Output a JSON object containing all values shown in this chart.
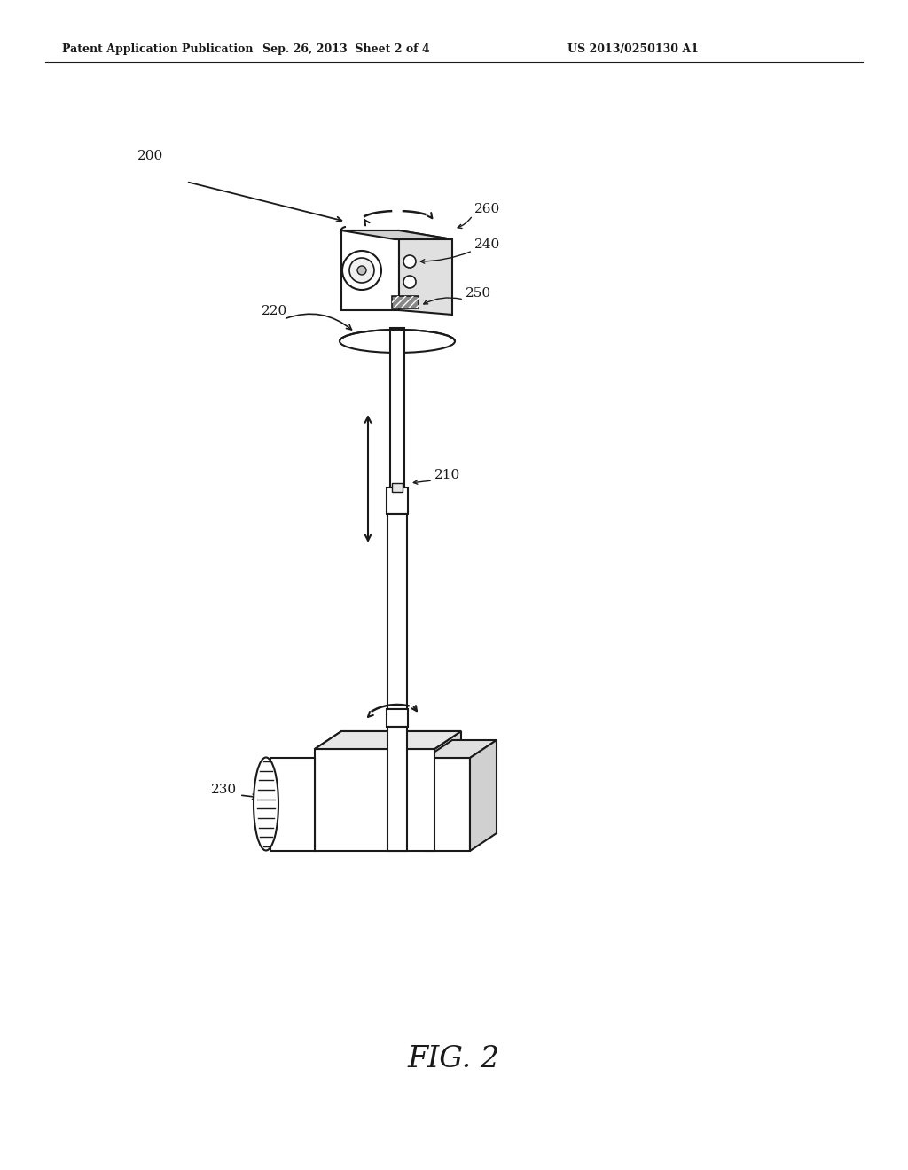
{
  "title": "FIG. 2",
  "header_left": "Patent Application Publication",
  "header_center": "Sep. 26, 2013  Sheet 2 of 4",
  "header_right": "US 2013/0250130 A1",
  "label_200": "200",
  "label_210": "210",
  "label_220": "220",
  "label_230": "230",
  "label_240": "240",
  "label_250": "250",
  "label_260": "260",
  "bg_color": "#ffffff",
  "line_color": "#1a1a1a",
  "text_color": "#1a1a1a"
}
